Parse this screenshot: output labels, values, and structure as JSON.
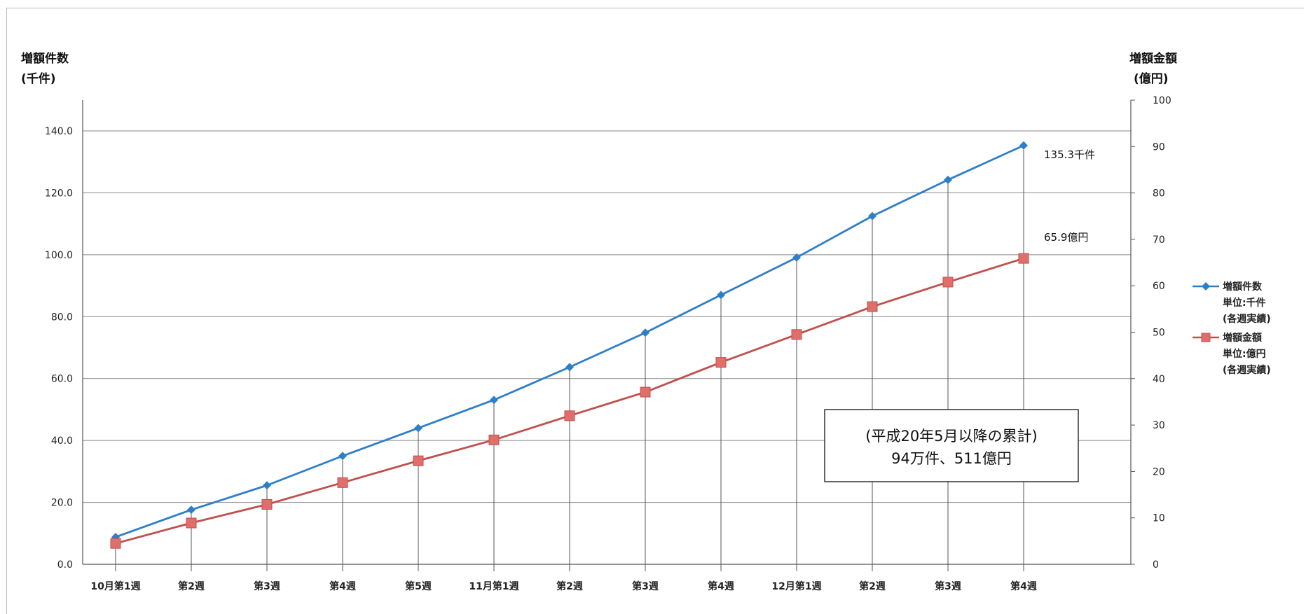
{
  "chart_data": {
    "type": "line",
    "categories": [
      "10月第1週",
      "第2週",
      "第3週",
      "第4週",
      "第5週",
      "11月第1週",
      "第2週",
      "第3週",
      "第4週",
      "12月第1週",
      "第2週",
      "第3週",
      "第4週"
    ],
    "left_axis": {
      "title_line1": "増額件数",
      "title_line2": "(千件)",
      "ylim": [
        0,
        140
      ],
      "ticks": [
        "0.0",
        "20.0",
        "40.0",
        "60.0",
        "80.0",
        "100.0",
        "120.0",
        "140.0"
      ]
    },
    "right_axis": {
      "title_line1": "増額金額",
      "title_line2": "(億円)",
      "ylim": [
        0,
        100
      ],
      "ticks": [
        "0",
        "10",
        "20",
        "30",
        "40",
        "50",
        "60",
        "70",
        "80",
        "90",
        "100"
      ]
    },
    "series": [
      {
        "name": "増額件数",
        "axis": "left",
        "color": "#2f7ec8",
        "marker": "diamond",
        "values": [
          8.8,
          17.6,
          25.5,
          35.0,
          44.0,
          53.1,
          63.7,
          74.8,
          87.0,
          99.1,
          112.5,
          124.2,
          135.3
        ],
        "end_label": "135.3千件",
        "legend_lines": [
          "増額件数",
          "単位:千件",
          "(各週実績)"
        ]
      },
      {
        "name": "増額金額",
        "axis": "right",
        "color": "#c0504d",
        "marker": "square",
        "values": [
          4.5,
          8.9,
          12.9,
          17.6,
          22.3,
          26.8,
          32.0,
          37.1,
          43.5,
          49.5,
          55.5,
          60.8,
          65.9
        ],
        "end_label": "65.9億円",
        "legend_lines": [
          "増額金額",
          "単位:億円",
          "(各週実績)"
        ]
      }
    ],
    "grid": true,
    "legend": "right",
    "annotation": {
      "line1": "(平成20年5月以降の累計)",
      "line2": "94万件、511億円"
    }
  }
}
